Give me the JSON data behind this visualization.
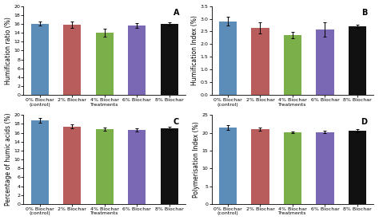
{
  "subplots": [
    {
      "label": "A",
      "ylabel": "Humification ratio (%)",
      "ylim": [
        0,
        20
      ],
      "yticks": [
        0,
        2,
        4,
        6,
        8,
        10,
        12,
        14,
        16,
        18,
        20
      ],
      "values": [
        16.0,
        15.8,
        14.0,
        15.6,
        16.0
      ],
      "errors": [
        0.45,
        0.65,
        0.85,
        0.5,
        0.3
      ]
    },
    {
      "label": "B",
      "ylabel": "Humification Index (%)",
      "ylim": [
        0,
        3.5
      ],
      "yticks": [
        0,
        0.5,
        1.0,
        1.5,
        2.0,
        2.5,
        3.0,
        3.5
      ],
      "values": [
        2.9,
        2.65,
        2.35,
        2.57,
        2.7
      ],
      "errors": [
        0.18,
        0.22,
        0.12,
        0.28,
        0.07
      ]
    },
    {
      "label": "C",
      "ylabel": "Percentage of humic acids (%)",
      "ylim": [
        0,
        20
      ],
      "yticks": [
        0,
        2,
        4,
        6,
        8,
        10,
        12,
        14,
        16,
        18,
        20
      ],
      "values": [
        18.8,
        17.4,
        16.8,
        16.6,
        17.0
      ],
      "errors": [
        0.5,
        0.4,
        0.3,
        0.35,
        0.4
      ]
    },
    {
      "label": "D",
      "ylabel": "Polymerisation Index (%)",
      "ylim": [
        0,
        25
      ],
      "yticks": [
        0,
        5,
        10,
        15,
        20,
        25
      ],
      "values": [
        21.5,
        20.9,
        20.2,
        20.2,
        20.6
      ],
      "errors": [
        0.65,
        0.45,
        0.2,
        0.3,
        0.38
      ]
    }
  ],
  "categories": [
    "0% Biochar\n(control)",
    "2% Biochar",
    "4% Biochar\nTreatments",
    "6% Biochar",
    "8% Biochar"
  ],
  "bar_colors": [
    "#5B8DB8",
    "#B85C5C",
    "#7BAF4A",
    "#7B68B5",
    "#111111"
  ],
  "bar_width": 0.55,
  "tick_fontsize": 4.5,
  "label_fontsize": 5.5,
  "panel_label_fontsize": 7,
  "figure_facecolor": "#ffffff"
}
